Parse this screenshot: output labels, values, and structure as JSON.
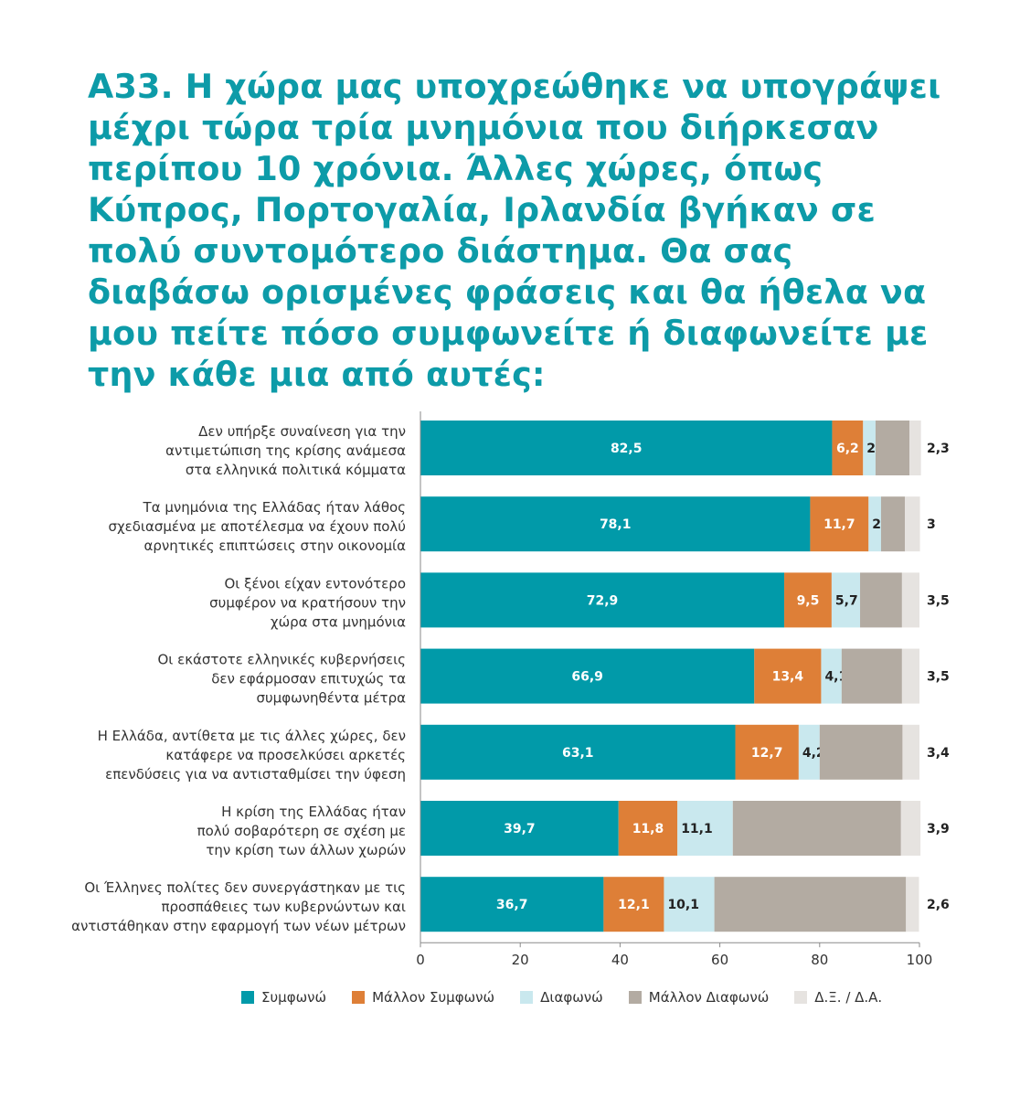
{
  "title": "Α33. Η χώρα μας υποχρεώθηκε να υπογράψει μέχρι τώρα τρία μνημόνια που διήρκεσαν περίπου 10 χρόνια. Άλλες χώρες, όπως Κύπρος, Πορτογαλία, Ιρλανδία βγήκαν σε πολύ συντομότερο διάστημα. Θα σας διαβάσω ορισμένες φράσεις και θα ήθελα να μου πείτε πόσο συμφωνείτε ή διαφωνείτε με την κάθε μια από αυτές:",
  "chart_data": {
    "type": "bar",
    "orientation": "horizontal",
    "stacked": true,
    "xlim": [
      0,
      100
    ],
    "xticks": [
      0,
      20,
      40,
      60,
      80,
      100
    ],
    "grid": false,
    "legend_position": "bottom",
    "categories": [
      [
        "Δεν υπήρξε συναίνεση για την",
        "αντιμετώπιση της κρίσης ανάμεσα",
        "στα ελληνικά πολιτικά κόμματα"
      ],
      [
        "Τα μνημόνια της Ελλάδας ήταν λάθος",
        "σχεδιασμένα με αποτέλεσμα να έχουν πολύ",
        "αρνητικές επιπτώσεις στην οικονομία"
      ],
      [
        "Οι ξένοι είχαν εντονότερο",
        "συμφέρον να κρατήσουν την",
        "χώρα στα μνημόνια"
      ],
      [
        "Οι εκάστοτε ελληνικές κυβερνήσεις",
        "δεν εφάρμοσαν επιτυχώς τα",
        "συμφωνηθέντα μέτρα"
      ],
      [
        "Η Ελλάδα, αντίθετα με τις άλλες χώρες, δεν",
        "κατάφερε να προσελκύσει αρκετές",
        "επενδύσεις για να αντισταθμίσει την ύφεση"
      ],
      [
        "Η κρίση της Ελλάδας ήταν",
        "πολύ σοβαρότερη σε σχέση με",
        "την κρίση των άλλων χωρών"
      ],
      [
        "Οι Έλληνες πολίτες δεν συνεργάστηκαν με τις",
        "προσπάθειες των κυβερνώντων και",
        "αντιστάθηκαν στην εφαρμογή των νέων μέτρων"
      ]
    ],
    "series": [
      {
        "name": "Συμφωνώ",
        "color": "#019aa9",
        "values": [
          82.5,
          78.1,
          72.9,
          66.9,
          63.1,
          39.7,
          36.7
        ],
        "labels": [
          "82,5",
          "78,1",
          "72,9",
          "66,9",
          "63,1",
          "39,7",
          "36,7"
        ],
        "label_color": "#ffffff"
      },
      {
        "name": "Μάλλον Συμφωνώ",
        "color": "#de7f37",
        "values": [
          6.2,
          11.7,
          9.5,
          13.4,
          12.7,
          11.8,
          12.1
        ],
        "labels": [
          "6,2",
          "11,7",
          "9,5",
          "13,4",
          "12,7",
          "11,8",
          "12,1"
        ],
        "label_color": "#ffffff"
      },
      {
        "name": "Διαφωνώ",
        "color": "#c9e8ee",
        "values": [
          2.5,
          2.5,
          5.7,
          4.1,
          4.2,
          11.1,
          10.1
        ],
        "labels": [
          "2,5",
          "2,5",
          "5,7",
          "4,1",
          "4,2",
          "11,1",
          "10,1"
        ],
        "label_color": "#222222"
      },
      {
        "name": "Μάλλον Διαφωνώ",
        "color": "#b3aba2",
        "values": [
          6.8,
          4.8,
          8.4,
          12.1,
          16.6,
          33.7,
          38.4
        ],
        "labels": [
          "",
          "",
          "",
          "",
          "",
          "",
          ""
        ],
        "label_color": "#222222"
      },
      {
        "name": "Δ.Ξ. / Δ.Α.",
        "color": "#e6e3e0",
        "values": [
          2.3,
          3,
          3.5,
          3.5,
          3.4,
          3.9,
          2.6
        ],
        "labels": [
          "2,3",
          "3",
          "3,5",
          "3,5",
          "3,4",
          "3,9",
          "2,6"
        ],
        "label_color": "#222222"
      }
    ]
  }
}
